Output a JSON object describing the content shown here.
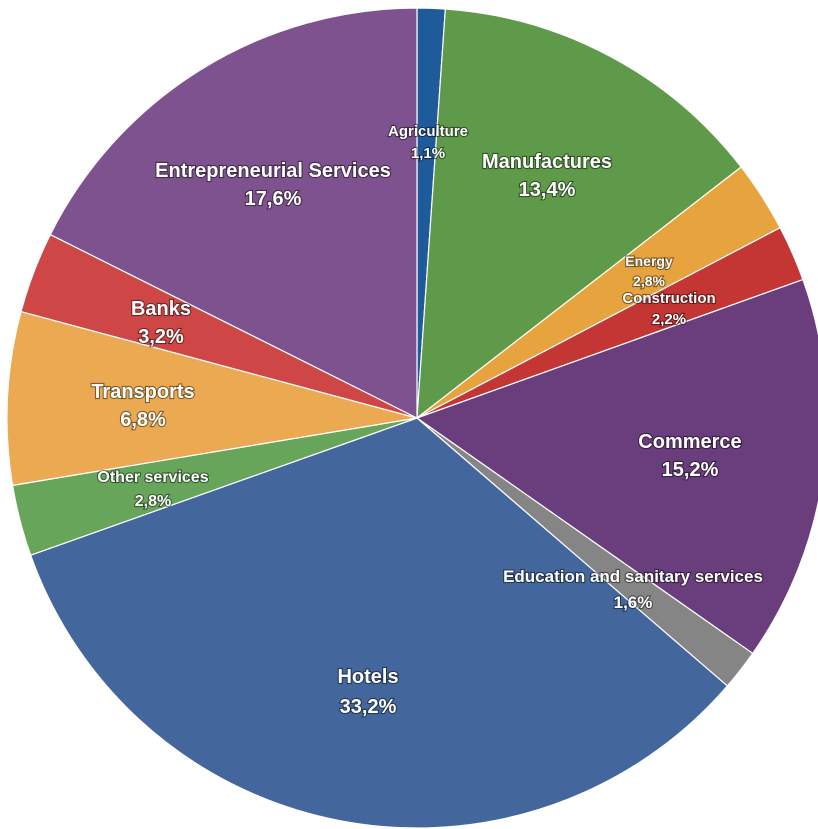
{
  "chart_data": {
    "type": "pie",
    "start_angle_deg": 0,
    "direction": "clockwise",
    "slices": [
      {
        "name": "Agriculture",
        "value": 1.1,
        "label": "1,1%",
        "color": "#1f5a9a"
      },
      {
        "name": "Manufactures",
        "value": 13.4,
        "label": "13,4%",
        "color": "#5e9a4a"
      },
      {
        "name": "Energy",
        "value": 2.8,
        "label": "2,8%",
        "color": "#e7a33e"
      },
      {
        "name": "Construction",
        "value": 2.2,
        "label": "2,2%",
        "color": "#c43634"
      },
      {
        "name": "Commerce",
        "value": 15.2,
        "label": "15,2%",
        "color": "#6a3d7d"
      },
      {
        "name": "Education and sanitary services",
        "value": 1.6,
        "label": "1,6%",
        "color": "#858585"
      },
      {
        "name": "Hotels",
        "value": 33.2,
        "label": "33,2%",
        "color": "#43679d"
      },
      {
        "name": "Other services",
        "value": 2.8,
        "label": "2,8%",
        "color": "#67a65a"
      },
      {
        "name": "Transports",
        "value": 6.8,
        "label": "6,8%",
        "color": "#eba952"
      },
      {
        "name": "Banks",
        "value": 3.2,
        "label": "3,2%",
        "color": "#cf4646"
      },
      {
        "name": "Entrepreneurial Services",
        "value": 17.6,
        "label": "17,6%",
        "color": "#7e528f"
      }
    ]
  }
}
